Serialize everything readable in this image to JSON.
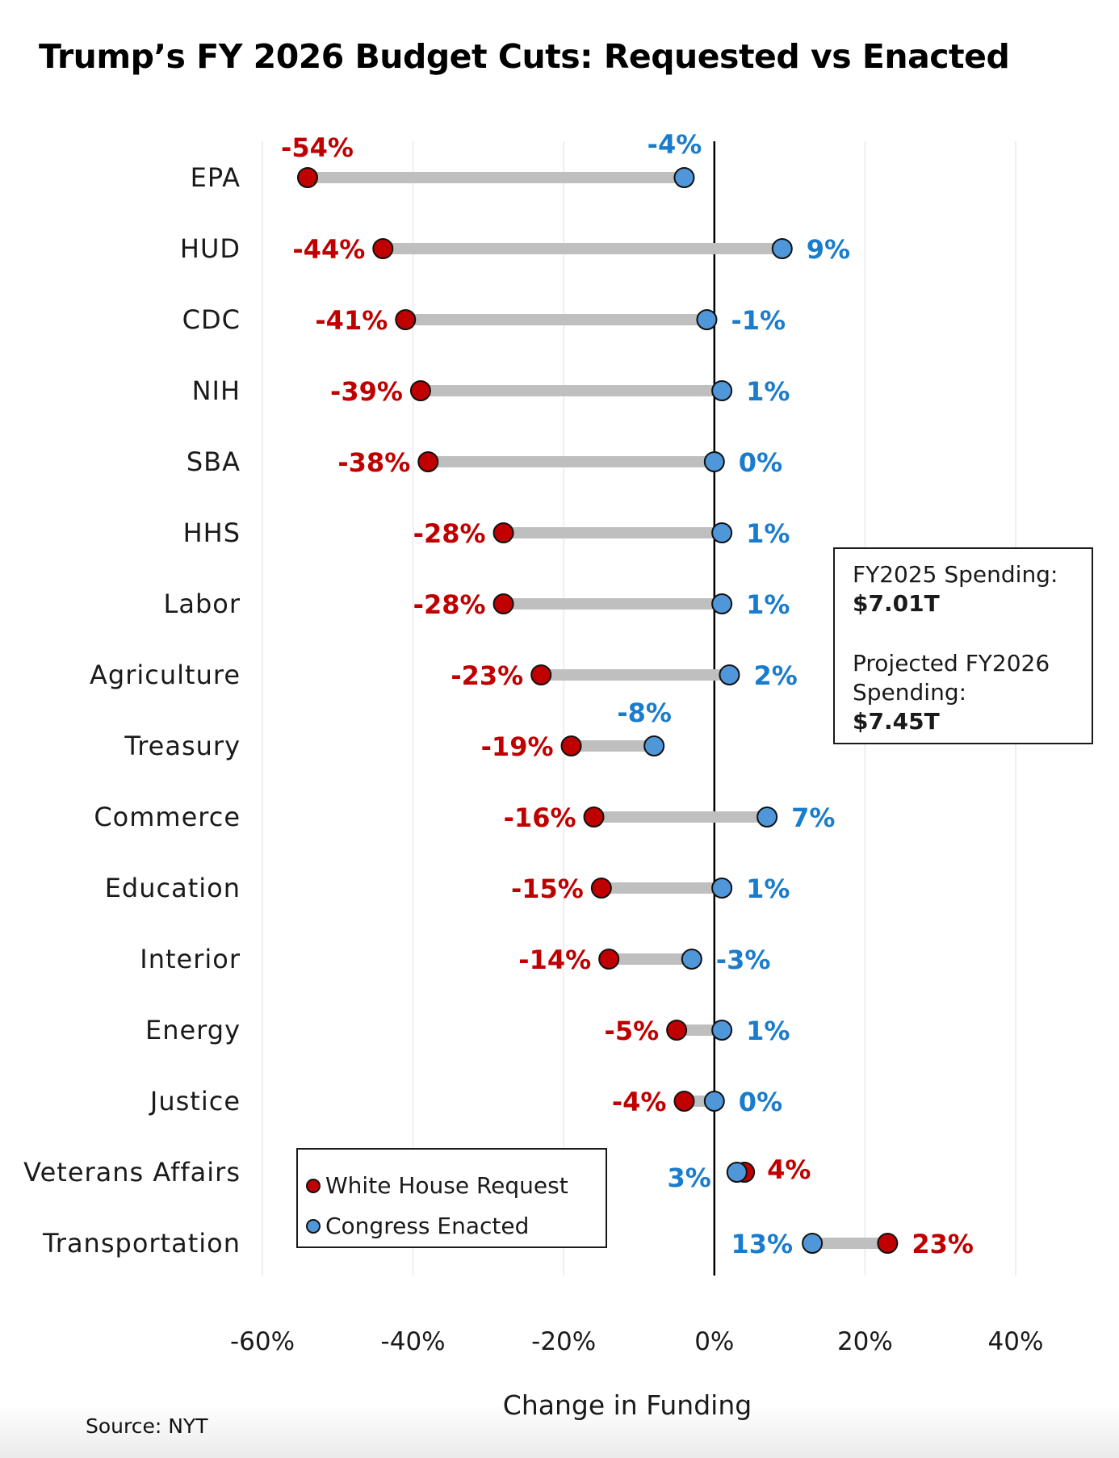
{
  "title": "Trump’s FY 2026 Budget Cuts: Requested vs Enacted",
  "source": "Source: NYT",
  "info_box": {
    "line1": "FY2025 Spending:",
    "value1": "$7.01T",
    "line2": "Projected FY2026",
    "line3": "Spending:",
    "value2": "$7.45T"
  },
  "legend": {
    "items": [
      {
        "label": "White House Request",
        "color": "#c00000"
      },
      {
        "label": "Congress Enacted",
        "color": "#4f97d9"
      }
    ]
  },
  "colors": {
    "request": "#c00000",
    "enacted": "#4f97d9",
    "request_text": "#c00000",
    "enacted_text": "#1a7ccc",
    "connector": "#bfbfbf",
    "grid": "#eeeeee",
    "zero_line": "#000000"
  },
  "chart_data": {
    "type": "dumbbell",
    "title": "Trump’s FY 2026 Budget Cuts: Requested vs Enacted",
    "xlabel": "Change in Funding",
    "ylabel": "",
    "xlim": [
      -60,
      40
    ],
    "x_ticks": [
      -60,
      -40,
      -20,
      0,
      20,
      40
    ],
    "x_tick_labels": [
      "-60%",
      "-40%",
      "-20%",
      "0%",
      "20%",
      "40%"
    ],
    "grid": true,
    "legend_position": "bottom-left",
    "categories": [
      "EPA",
      "HUD",
      "CDC",
      "NIH",
      "SBA",
      "HHS",
      "Labor",
      "Agriculture",
      "Treasury",
      "Commerce",
      "Education",
      "Interior",
      "Energy",
      "Justice",
      "Veterans Affairs",
      "Transportation"
    ],
    "series": [
      {
        "name": "White House Request",
        "values": [
          -54,
          -44,
          -41,
          -39,
          -38,
          -28,
          -28,
          -23,
          -19,
          -16,
          -15,
          -14,
          -5,
          -4,
          4,
          23
        ]
      },
      {
        "name": "Congress Enacted",
        "values": [
          -4,
          9,
          -1,
          1,
          0,
          1,
          1,
          2,
          -8,
          7,
          1,
          -3,
          1,
          0,
          3,
          13
        ]
      }
    ],
    "labels": {
      "request": [
        "-54%",
        "-44%",
        "-41%",
        "-39%",
        "-38%",
        "-28%",
        "-28%",
        "-23%",
        "-19%",
        "-16%",
        "-15%",
        "-14%",
        "-5%",
        "-4%",
        "4%",
        "23%"
      ],
      "enacted": [
        "-4%",
        "9%",
        "-1%",
        "1%",
        "0%",
        "1%",
        "1%",
        "2%",
        "-8%",
        "7%",
        "1%",
        "-3%",
        "1%",
        "0%",
        "3%",
        "13%"
      ]
    },
    "label_placement": {
      "request": [
        "above",
        "left",
        "left",
        "left",
        "left",
        "left",
        "left",
        "left",
        "left",
        "left",
        "left",
        "left",
        "left",
        "left",
        "right",
        "right"
      ],
      "enacted": [
        "above",
        "right",
        "right",
        "right",
        "right",
        "right",
        "right",
        "right",
        "above",
        "right",
        "right",
        "right",
        "right",
        "right",
        "left",
        "left"
      ]
    }
  }
}
